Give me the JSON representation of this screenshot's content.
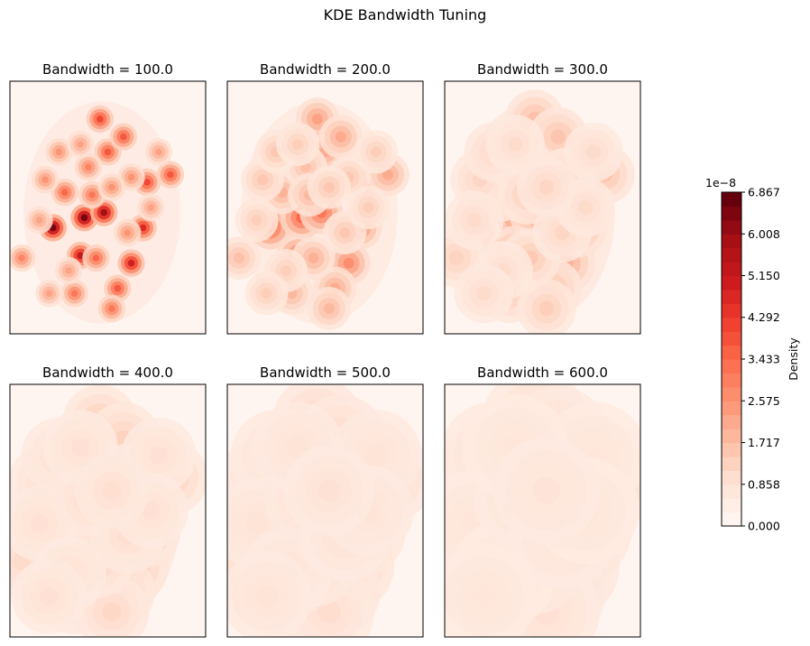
{
  "chart_data": {
    "type": "heatmap",
    "title": "KDE Bandwidth Tuning",
    "colormap": "Reds",
    "colormap_stops": [
      "#fff5f0",
      "#fee0d2",
      "#fcbba1",
      "#fc9272",
      "#fb6a4a",
      "#ef3b2c",
      "#cb181d",
      "#a50f15",
      "#67000d"
    ],
    "panels": [
      {
        "title": "Bandwidth = 100.0",
        "bandwidth": 100.0
      },
      {
        "title": "Bandwidth = 200.0",
        "bandwidth": 200.0
      },
      {
        "title": "Bandwidth = 300.0",
        "bandwidth": 300.0
      },
      {
        "title": "Bandwidth = 400.0",
        "bandwidth": 400.0
      },
      {
        "title": "Bandwidth = 500.0",
        "bandwidth": 500.0
      },
      {
        "title": "Bandwidth = 600.0",
        "bandwidth": 600.0
      }
    ],
    "colorbar": {
      "label": "Density",
      "offset_text": "1e−8",
      "range": [
        0,
        6.867
      ],
      "ticks": [
        "0.000",
        "0.858",
        "1.717",
        "2.575",
        "3.433",
        "4.292",
        "5.150",
        "6.008",
        "6.867"
      ]
    }
  }
}
